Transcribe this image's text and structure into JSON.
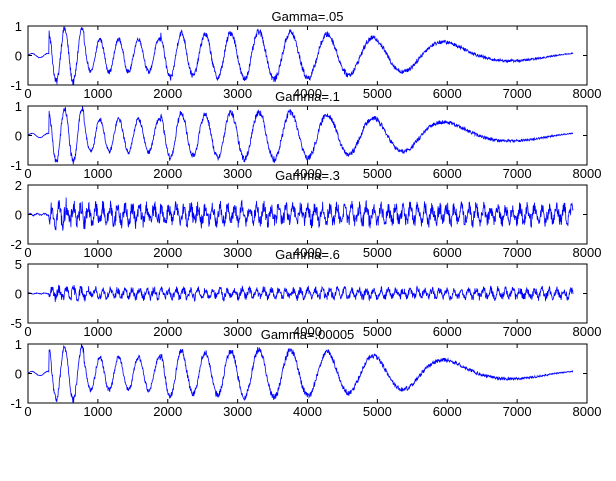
{
  "colors": {
    "line": "#0000ff",
    "axes": "#000000",
    "background": "#ffffff"
  },
  "chart_data": [
    {
      "type": "line",
      "title": "Gamma=.05",
      "xlim": [
        0,
        8000
      ],
      "ylim": [
        -1,
        1
      ],
      "xticks": [
        "0",
        "1000",
        "2000",
        "3000",
        "4000",
        "5000",
        "6000",
        "7000",
        "8000"
      ],
      "yticks": [
        "1",
        "0",
        "-1"
      ],
      "signal_length": 7800,
      "peak_amplitude": 1
    },
    {
      "type": "line",
      "title": "Gamma=.1",
      "xlim": [
        0,
        8000
      ],
      "ylim": [
        -1,
        1
      ],
      "xticks": [
        "0",
        "1000",
        "2000",
        "3000",
        "4000",
        "5000",
        "6000",
        "7000",
        "8000"
      ],
      "yticks": [
        "1",
        "0",
        "-1"
      ],
      "signal_length": 7800,
      "peak_amplitude": 1
    },
    {
      "type": "line",
      "title": "Gamma=.3",
      "xlim": [
        0,
        8000
      ],
      "ylim": [
        -2,
        2
      ],
      "xticks": [
        "0",
        "1000",
        "2000",
        "3000",
        "4000",
        "5000",
        "6000",
        "7000",
        "8000"
      ],
      "yticks": [
        "2",
        "0",
        "-2"
      ],
      "signal_length": 7800,
      "peak_amplitude": 1
    },
    {
      "type": "line",
      "title": "Gamma=.6",
      "xlim": [
        0,
        8000
      ],
      "ylim": [
        -5,
        5
      ],
      "xticks": [
        "0",
        "1000",
        "2000",
        "3000",
        "4000",
        "5000",
        "6000",
        "7000",
        "8000"
      ],
      "yticks": [
        "5",
        "0",
        "-5"
      ],
      "signal_length": 7800,
      "peak_amplitude": 1.3
    },
    {
      "type": "line",
      "title": "Gamma=.00005",
      "xlim": [
        0,
        8000
      ],
      "ylim": [
        -1,
        1
      ],
      "xticks": [
        "0",
        "1000",
        "2000",
        "3000",
        "4000",
        "5000",
        "6000",
        "7000",
        "8000"
      ],
      "yticks": [
        "1",
        "0",
        "-1"
      ],
      "signal_length": 7800,
      "peak_amplitude": 1
    }
  ]
}
